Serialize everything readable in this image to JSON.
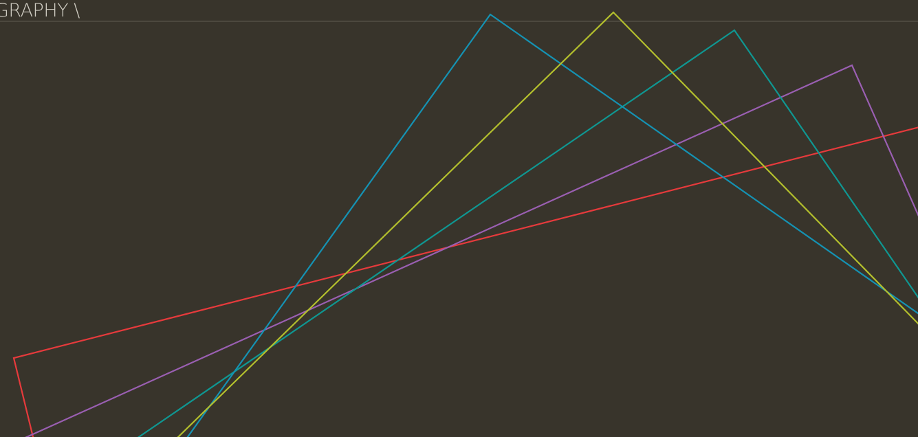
{
  "header": {
    "title": "GRAPHY \\"
  },
  "decor": {
    "colors": {
      "background": "#38342b",
      "rule": "#4c483e",
      "text": "#cfccc2",
      "red": "#e63a3c",
      "purple": "#9a5fb2",
      "teal": "#0f9792",
      "blue": "#1592b3",
      "lime": "#b3bf2d"
    }
  }
}
